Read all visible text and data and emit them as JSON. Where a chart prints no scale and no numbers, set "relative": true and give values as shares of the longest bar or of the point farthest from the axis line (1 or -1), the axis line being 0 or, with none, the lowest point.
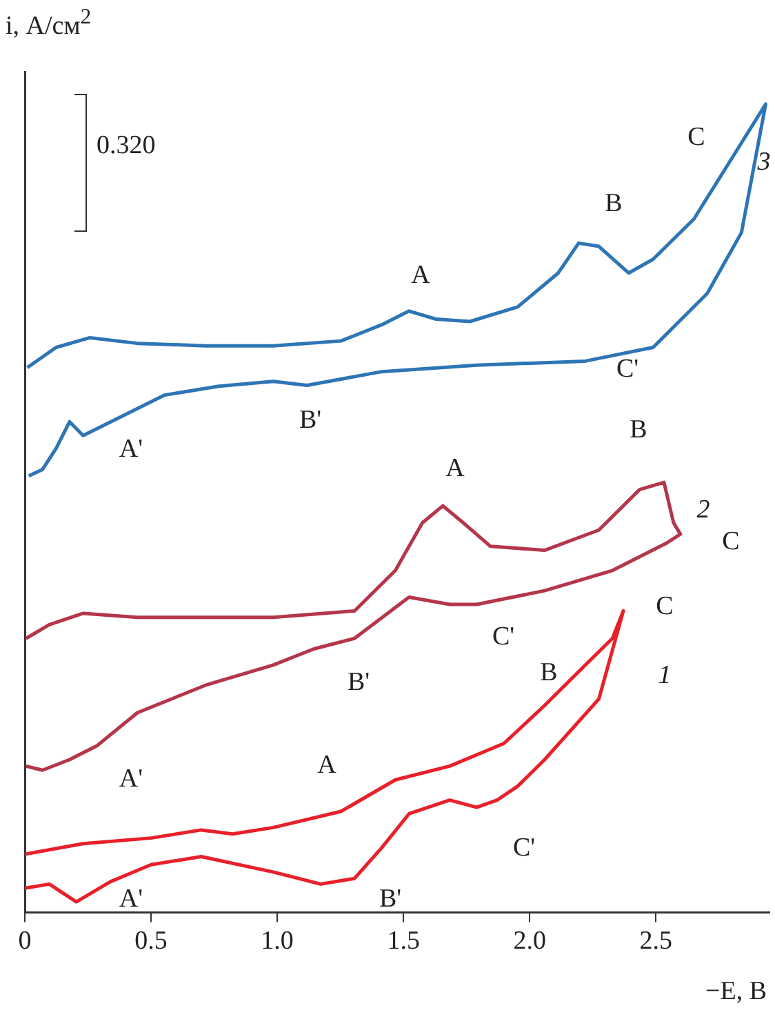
{
  "chart_data": {
    "type": "line",
    "relative": true,
    "xlabel": "−E, В",
    "ylabel": "i, А/см$^{2}$",
    "xlim": [
      0,
      2.95
    ],
    "xticks": [
      0,
      0.5,
      {
        "value": 1,
        "label": "1.0"
      },
      1.5,
      {
        "value": 2,
        "label": "2.0"
      },
      2.5
    ],
    "grid": false,
    "legend": false,
    "marker": "none",
    "line_style": "solid",
    "series": [
      {
        "color": "#2e75b6",
        "x": [
          0.01,
          0.124,
          0.258,
          0.446,
          0.715,
          0.984,
          1.253,
          1.414,
          1.522,
          1.629,
          1.763,
          1.952,
          2.113,
          2.194,
          2.274,
          2.392,
          2.489,
          2.651,
          2.785,
          2.935,
          2.839,
          2.704,
          2.489,
          2.22,
          1.79,
          1.414,
          1.118,
          0.984,
          0.769,
          0.554,
          0.392,
          0.231,
          0.177,
          0.124,
          0.07,
          0.016
        ],
        "values": [
          0.674,
          0.699,
          0.711,
          0.704,
          0.701,
          0.701,
          0.707,
          0.727,
          0.744,
          0.734,
          0.731,
          0.749,
          0.791,
          0.828,
          0.824,
          0.791,
          0.808,
          0.858,
          0.925,
          1,
          0.841,
          0.766,
          0.699,
          0.682,
          0.677,
          0.669,
          0.652,
          0.657,
          0.651,
          0.64,
          0.615,
          0.59,
          0.607,
          0.574,
          0.548,
          0.54
        ]
      },
      {
        "color": "#b5364a",
        "x": [
          0.005,
          0.097,
          0.231,
          0.446,
          0.984,
          1.306,
          1.468,
          1.575,
          1.656,
          1.737,
          1.844,
          2.059,
          2.274,
          2.435,
          2.532,
          2.57,
          2.597,
          2.543,
          2.328,
          2.059,
          1.79,
          1.683,
          1.522,
          1.306,
          1.145,
          0.984,
          0.715,
          0.446,
          0.285,
          0.177,
          0.07,
          0.005
        ],
        "values": [
          0.339,
          0.356,
          0.37,
          0.365,
          0.365,
          0.373,
          0.423,
          0.482,
          0.503,
          0.482,
          0.453,
          0.448,
          0.473,
          0.523,
          0.532,
          0.482,
          0.468,
          0.457,
          0.423,
          0.398,
          0.381,
          0.381,
          0.39,
          0.339,
          0.326,
          0.306,
          0.281,
          0.247,
          0.206,
          0.189,
          0.176,
          0.181
        ]
      },
      {
        "color": "#e8202a",
        "x": [
          0,
          0.231,
          0.5,
          0.699,
          0.823,
          0.984,
          1.253,
          1.468,
          1.683,
          1.898,
          2.059,
          2.22,
          2.328,
          2.371,
          2.274,
          2.059,
          1.952,
          1.871,
          1.79,
          1.683,
          1.522,
          1.414,
          1.306,
          1.172,
          0.984,
          0.699,
          0.5,
          0.339,
          0.204,
          0.097,
          0
        ],
        "values": [
          0.072,
          0.085,
          0.092,
          0.102,
          0.097,
          0.105,
          0.125,
          0.164,
          0.181,
          0.209,
          0.256,
          0.306,
          0.339,
          0.373,
          0.264,
          0.189,
          0.156,
          0.139,
          0.13,
          0.139,
          0.122,
          0.08,
          0.042,
          0.035,
          0.05,
          0.069,
          0.059,
          0.038,
          0.013,
          0.035,
          0.03
        ]
      }
    ],
    "annotations": [
      "0.320",
      "A",
      "B",
      "C",
      "3",
      "C'",
      "B'",
      "A'",
      "A",
      "B",
      "2",
      "C",
      "C'",
      "B'",
      "A'",
      "A",
      "B",
      "C",
      "1",
      "C'",
      "B'",
      "A'"
    ]
  }
}
